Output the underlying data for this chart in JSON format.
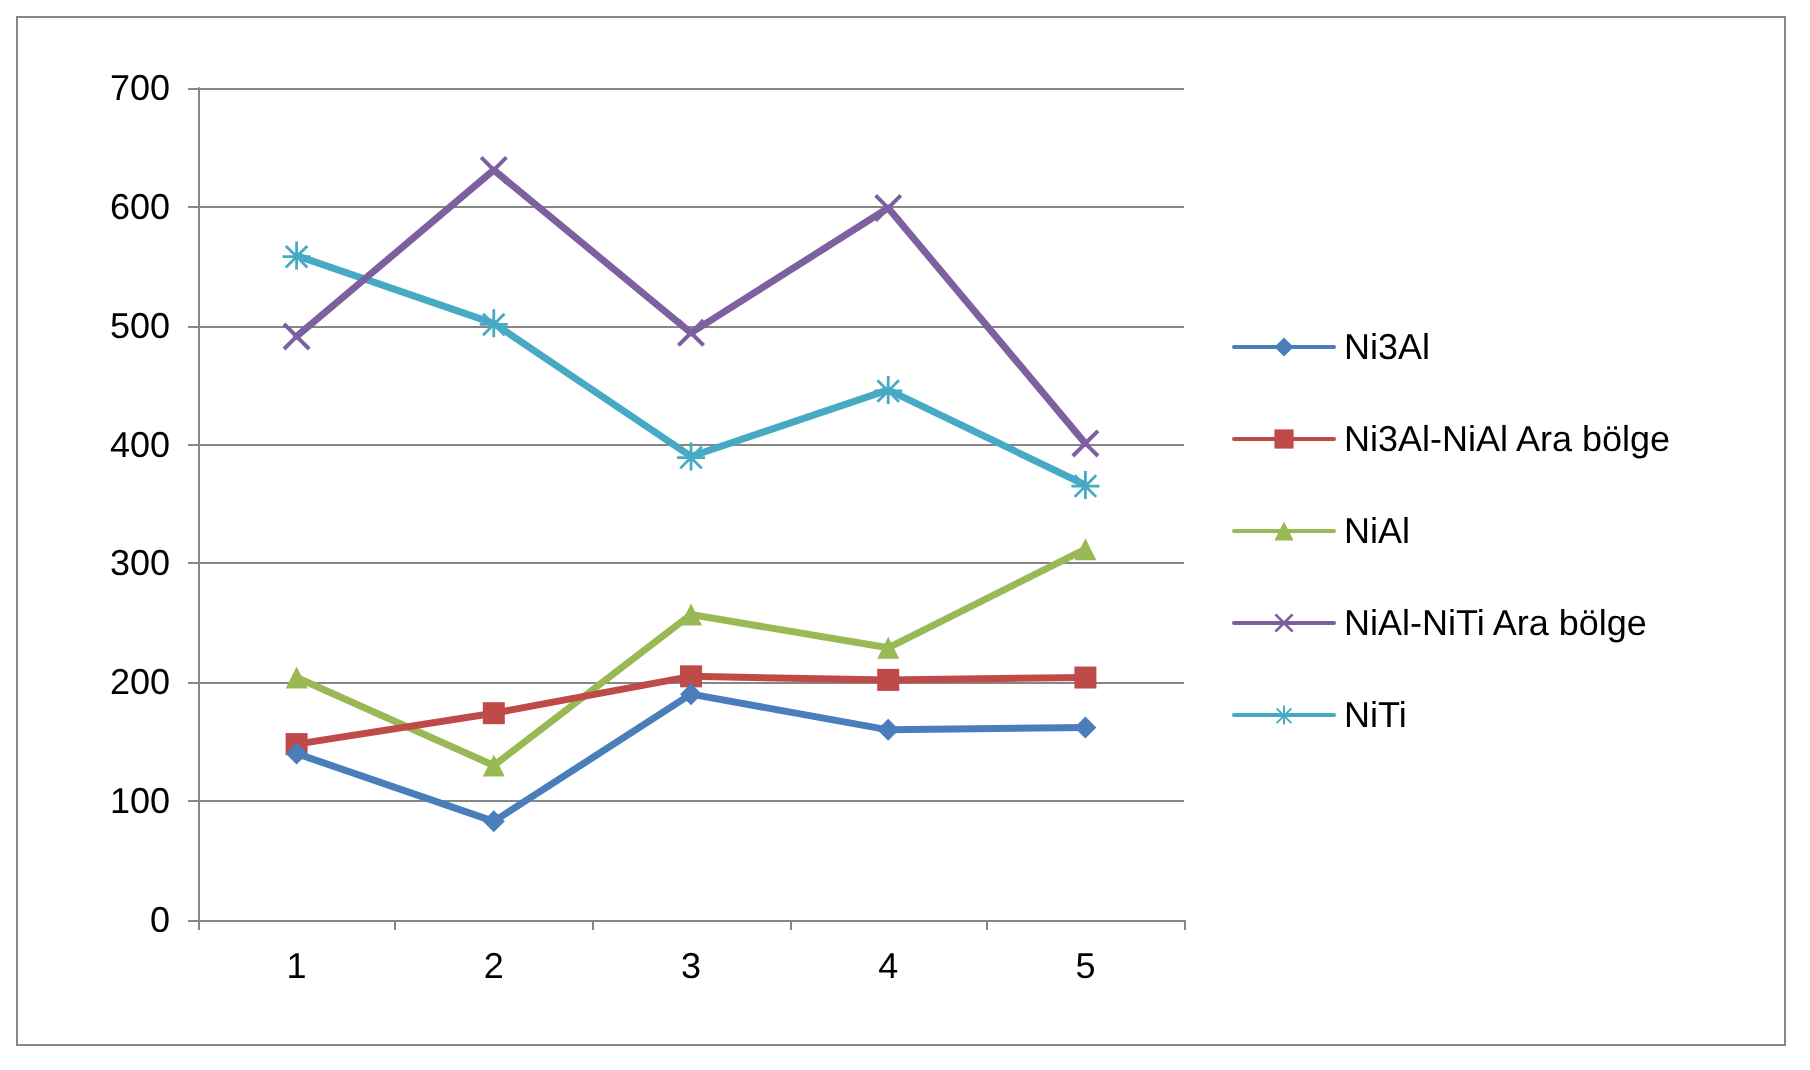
{
  "chart_data": {
    "type": "line",
    "categories": [
      "1",
      "2",
      "3",
      "4",
      "5"
    ],
    "series": [
      {
        "name": "Ni3Al",
        "color": "#4a7ebb",
        "marker": "diamond",
        "values": [
          140,
          83,
          190,
          160,
          162
        ]
      },
      {
        "name": "Ni3Al-NiAl Ara bölge",
        "color": "#be4b48",
        "marker": "square",
        "values": [
          148,
          174,
          205,
          202,
          204
        ]
      },
      {
        "name": "NiAl",
        "color": "#98b954",
        "marker": "triangle",
        "values": [
          204,
          130,
          257,
          229,
          312
        ]
      },
      {
        "name": "NiAl-NiTi Ara bölge",
        "color": "#7d60a0",
        "marker": "cross",
        "values": [
          491,
          631,
          494,
          599,
          401
        ]
      },
      {
        "name": "NiTi",
        "color": "#46aac5",
        "marker": "star",
        "values": [
          559,
          502,
          390,
          446,
          366
        ]
      }
    ],
    "ylim": [
      0,
      700
    ],
    "yticks": [
      0,
      100,
      200,
      300,
      400,
      500,
      600,
      700
    ],
    "grid": "y",
    "legend": "right",
    "line_style": "solid"
  }
}
